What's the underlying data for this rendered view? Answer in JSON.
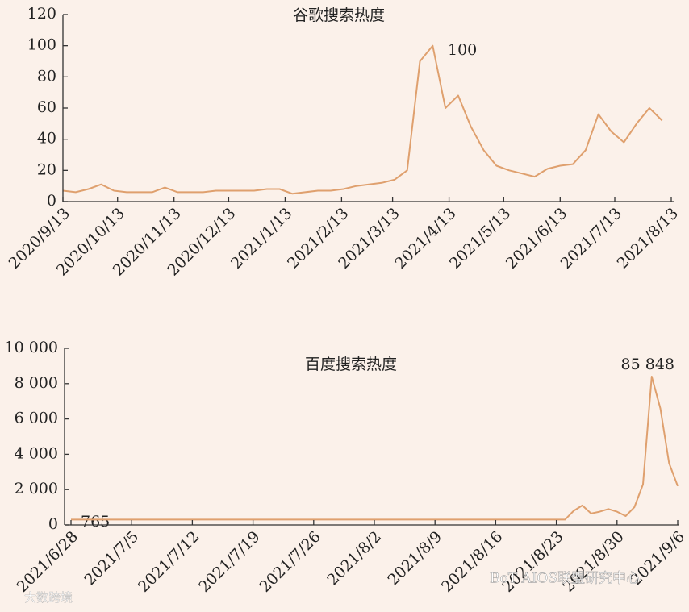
{
  "chart_data": [
    {
      "type": "line",
      "title": "谷歌搜索热度",
      "color": "#dfa06e",
      "x": [
        "2020/9/13",
        "2020/9/20",
        "2020/9/27",
        "2020/10/4",
        "2020/10/11",
        "2020/10/18",
        "2020/10/25",
        "2020/11/1",
        "2020/11/8",
        "2020/11/15",
        "2020/11/22",
        "2020/11/29",
        "2020/12/6",
        "2020/12/13",
        "2020/12/20",
        "2020/12/27",
        "2021/1/3",
        "2021/1/10",
        "2021/1/17",
        "2021/1/24",
        "2021/1/31",
        "2021/2/7",
        "2021/2/14",
        "2021/2/21",
        "2021/2/28",
        "2021/3/7",
        "2021/3/14",
        "2021/3/21",
        "2021/3/28",
        "2021/4/4",
        "2021/4/11",
        "2021/4/18",
        "2021/4/25",
        "2021/5/2",
        "2021/5/9",
        "2021/5/16",
        "2021/5/23",
        "2021/5/30",
        "2021/6/6",
        "2021/6/13",
        "2021/6/20",
        "2021/6/27",
        "2021/7/4",
        "2021/7/11",
        "2021/7/18",
        "2021/7/25",
        "2021/8/1",
        "2021/8/8"
      ],
      "values": [
        7,
        6,
        8,
        11,
        7,
        6,
        6,
        6,
        9,
        6,
        6,
        6,
        7,
        7,
        7,
        7,
        8,
        8,
        5,
        6,
        7,
        7,
        8,
        10,
        11,
        12,
        14,
        20,
        90,
        100,
        60,
        68,
        48,
        33,
        23,
        20,
        18,
        16,
        21,
        23,
        24,
        33,
        56,
        45,
        38,
        50,
        60,
        52
      ],
      "xlim": [
        "2020/9/13",
        "2021/8/13"
      ],
      "xticks": [
        "2020/9/13",
        "2020/10/13",
        "2020/11/13",
        "2020/12/13",
        "2021/1/13",
        "2021/2/13",
        "2021/3/13",
        "2021/4/13",
        "2021/5/13",
        "2021/6/13",
        "2021/7/13",
        "2021/8/13"
      ],
      "ylim": [
        0,
        120
      ],
      "yticks": [
        0,
        20,
        40,
        60,
        80,
        100,
        120
      ],
      "annotations": [
        {
          "text": "100"
        }
      ]
    },
    {
      "type": "line",
      "title": "百度搜索热度",
      "color": "#dfa06e",
      "x": [
        "2021/6/28",
        "2021/8/24",
        "2021/8/25",
        "2021/8/26",
        "2021/8/27",
        "2021/8/28",
        "2021/8/29",
        "2021/8/30",
        "2021/8/31",
        "2021/9/1",
        "2021/9/2",
        "2021/9/3",
        "2021/9/4",
        "2021/9/5",
        "2021/9/6"
      ],
      "values": [
        300,
        300,
        800,
        1100,
        650,
        750,
        900,
        750,
        500,
        1000,
        2300,
        8400,
        6600,
        3500,
        2200
      ],
      "xlim": [
        "2021/6/28",
        "2021/9/6"
      ],
      "xticks": [
        "2021/6/28",
        "2021/7/5",
        "2021/7/12",
        "2021/7/19",
        "2021/7/26",
        "2021/8/2",
        "2021/8/9",
        "2021/8/16",
        "2021/8/23",
        "2021/8/30",
        "2021/9/6"
      ],
      "ylim": [
        0,
        10000
      ],
      "yticks": [
        0,
        {
          "value": 2000,
          "label": "2 000"
        },
        {
          "value": 4000,
          "label": "4 000"
        },
        {
          "value": 6000,
          "label": "6 000"
        },
        {
          "value": 8000,
          "label": "8 000"
        },
        {
          "value": 10000,
          "label": "10 000"
        }
      ],
      "annotations": [
        {
          "text": "765"
        },
        {
          "text": "85 848"
        }
      ]
    }
  ],
  "watermarks": [
    "BoT AIOS联盟研究中心",
    "大数跨境"
  ]
}
